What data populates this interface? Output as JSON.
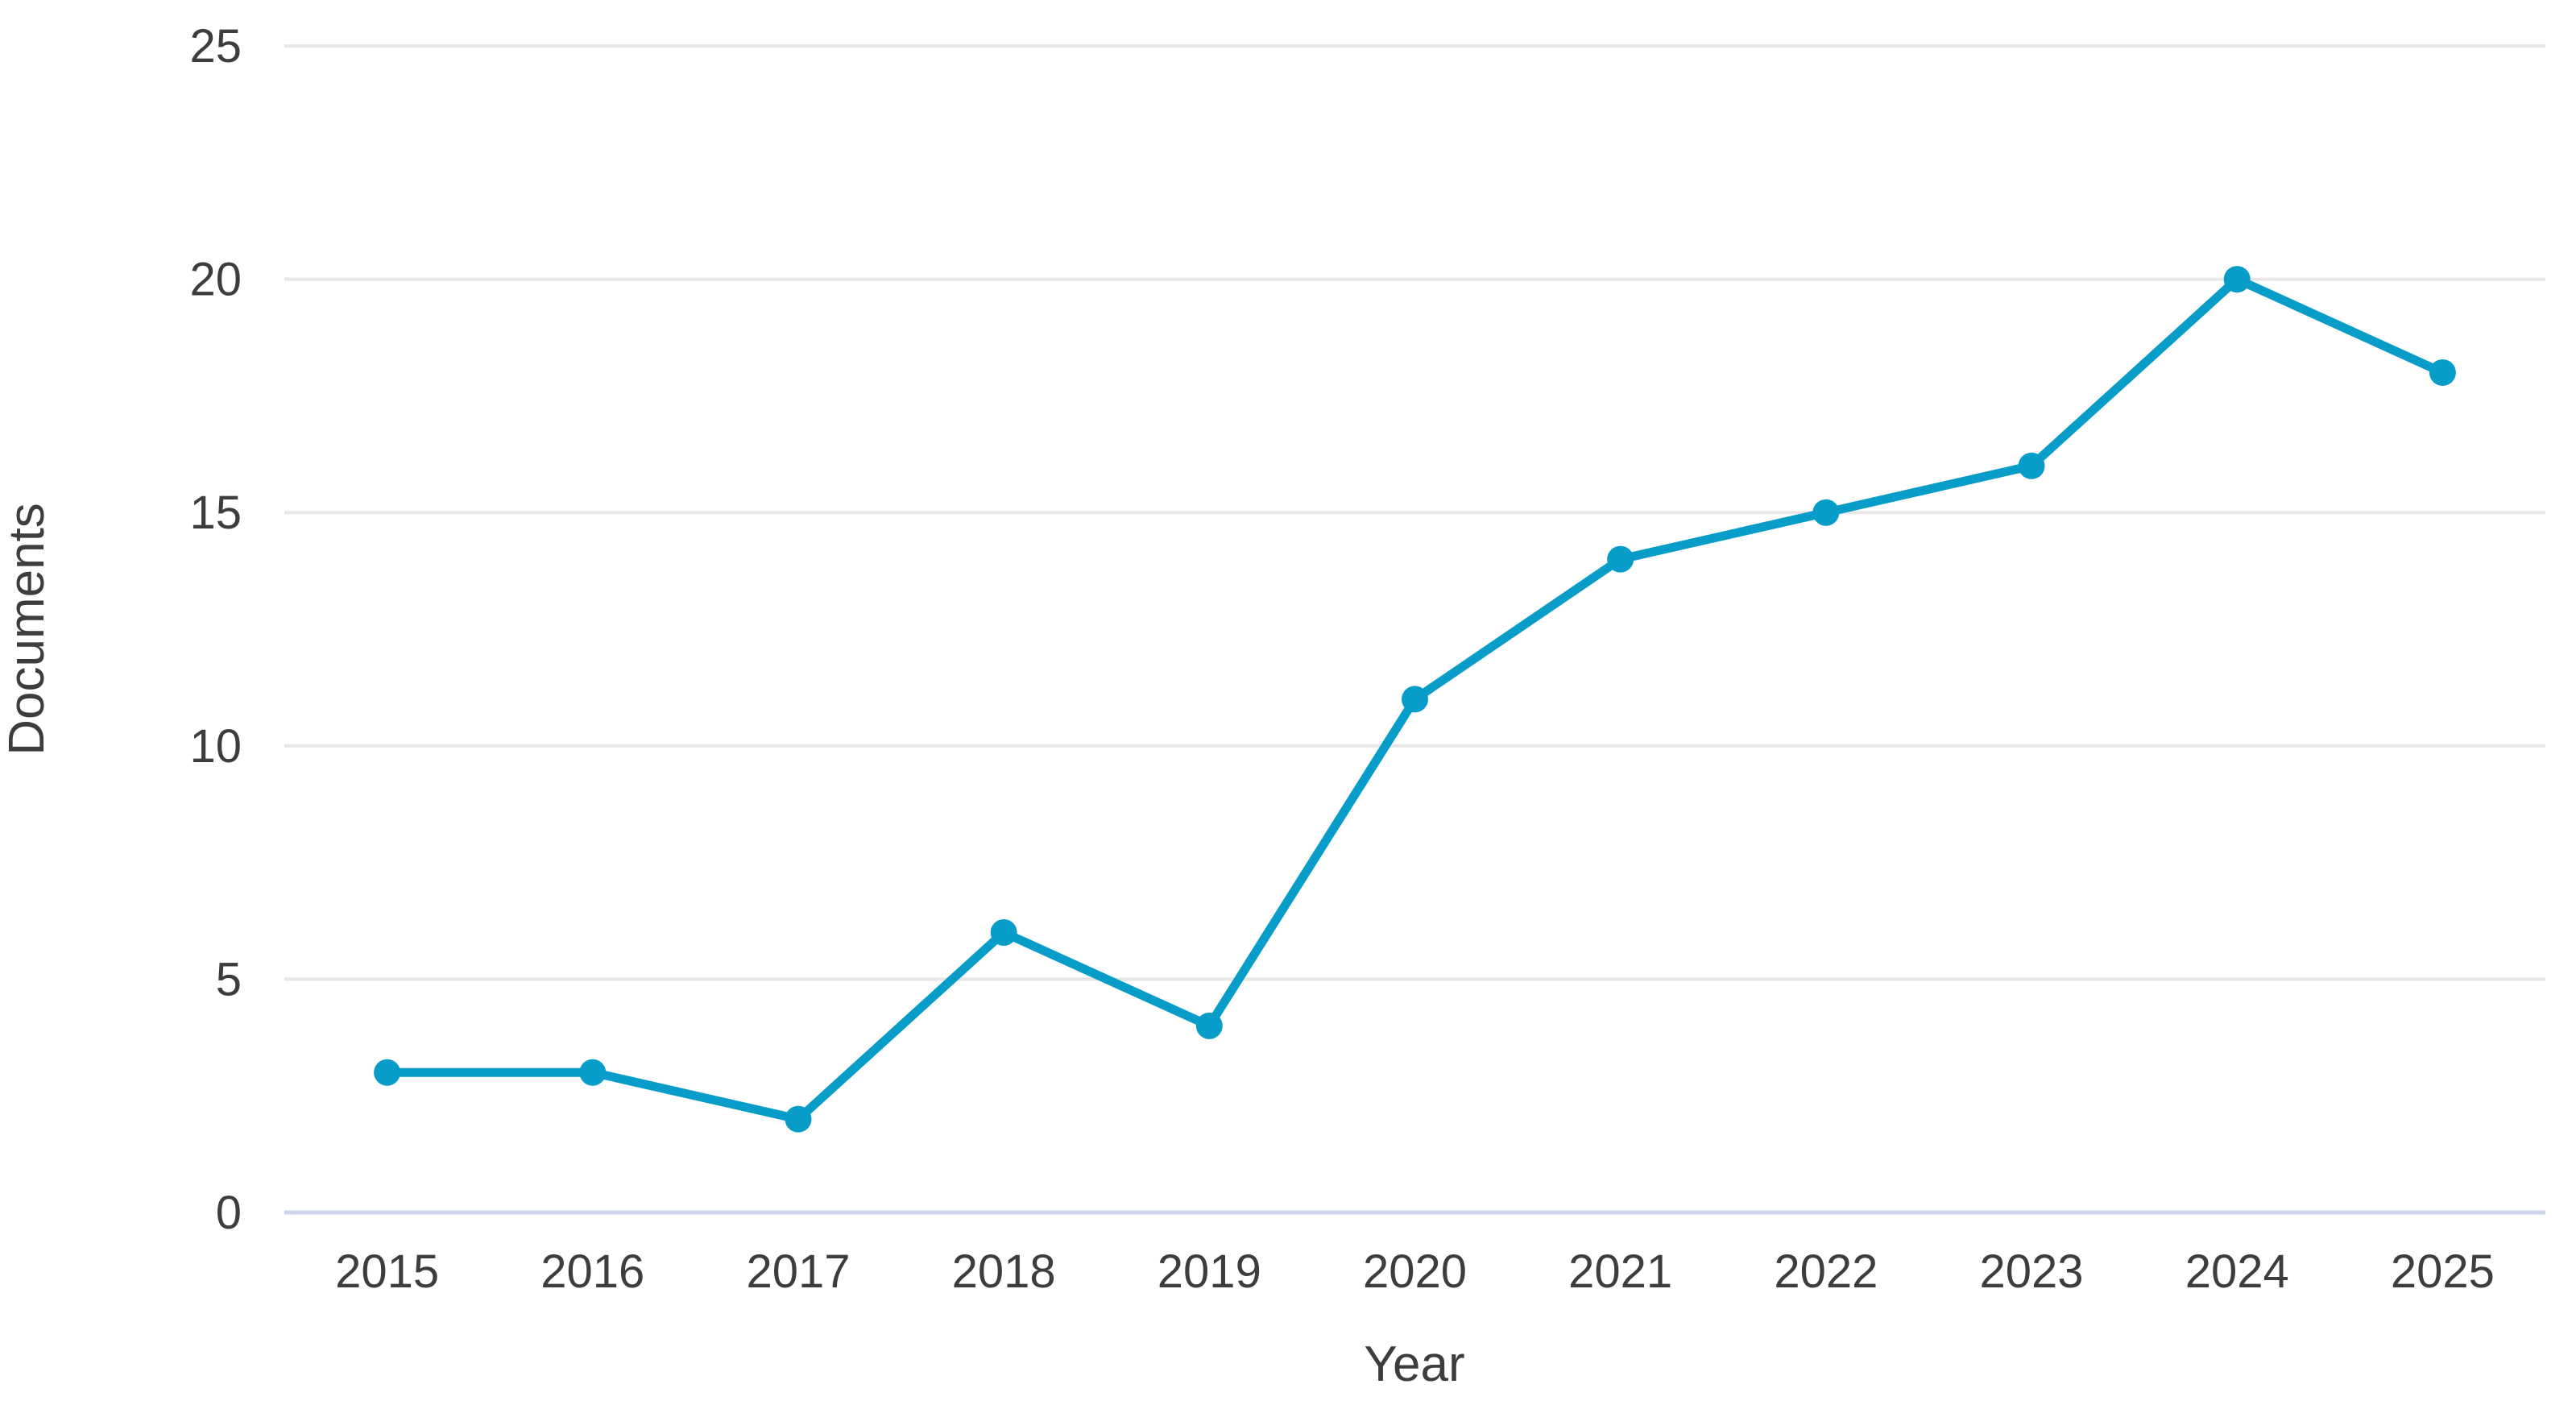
{
  "colors": {
    "line": "#089dc9",
    "marker": "#089dc9",
    "grid": "#e7e7e7",
    "axis_baseline": "#ccd4ec",
    "text": "#3d3d3d"
  },
  "chart_data": {
    "type": "line",
    "title": "",
    "categories": [
      "2015",
      "2016",
      "2017",
      "2018",
      "2019",
      "2020",
      "2021",
      "2022",
      "2023",
      "2024",
      "2025"
    ],
    "series": [
      {
        "name": "Documents",
        "values": [
          3,
          3,
          2,
          6,
          4,
          11,
          14,
          15,
          16,
          20,
          18
        ]
      }
    ],
    "xlabel": "Year",
    "ylabel": "Documents",
    "ylim": [
      0,
      25
    ],
    "yticks": [
      0,
      5,
      10,
      15,
      20,
      25
    ],
    "grid": "horizontal",
    "legend": "none",
    "marker": "circle"
  }
}
